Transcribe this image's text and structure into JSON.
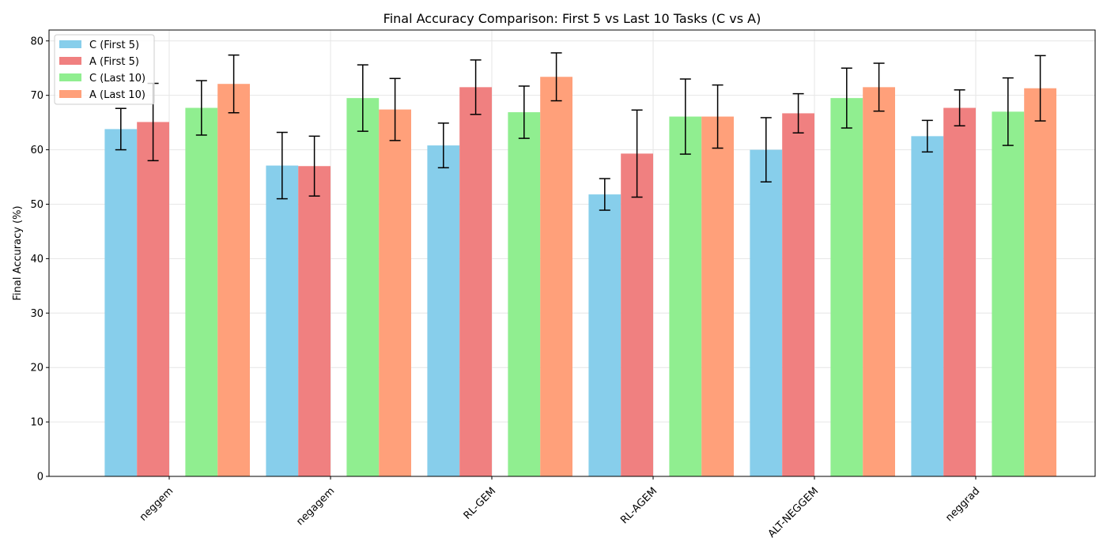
{
  "chart_data": {
    "type": "bar",
    "title": "Final Accuracy Comparison: First 5 vs Last 10 Tasks (C vs A)",
    "xlabel": "",
    "ylabel": "Final Accuracy (%)",
    "ylim": [
      0,
      82
    ],
    "yticks": [
      0,
      10,
      20,
      30,
      40,
      50,
      60,
      70,
      80
    ],
    "grid": true,
    "legend_position": "top-left",
    "categories": [
      "neggem",
      "negagem",
      "RL-GEM",
      "RL-AGEM",
      "ALT-NEGGEM",
      "neggrad"
    ],
    "series": [
      {
        "name": "C (First 5)",
        "color": "#87ceeb",
        "values": [
          63.8,
          57.1,
          60.8,
          51.8,
          60.0,
          62.5
        ],
        "errors": [
          3.8,
          6.1,
          4.1,
          2.9,
          5.9,
          2.9
        ]
      },
      {
        "name": "A (First 5)",
        "color": "#f08080",
        "values": [
          65.1,
          57.0,
          71.5,
          59.3,
          66.7,
          67.7
        ],
        "errors": [
          7.1,
          5.5,
          5.0,
          8.0,
          3.6,
          3.3
        ]
      },
      {
        "name": "C (Last 10)",
        "color": "#90ee90",
        "values": [
          67.7,
          69.5,
          66.9,
          66.1,
          69.5,
          67.0
        ],
        "errors": [
          5.0,
          6.1,
          4.8,
          6.9,
          5.5,
          6.2
        ]
      },
      {
        "name": "A (Last 10)",
        "color": "#ffa07a",
        "values": [
          72.1,
          67.4,
          73.4,
          66.1,
          71.5,
          71.3
        ],
        "errors": [
          5.3,
          5.7,
          4.4,
          5.8,
          4.4,
          6.0
        ]
      }
    ]
  }
}
